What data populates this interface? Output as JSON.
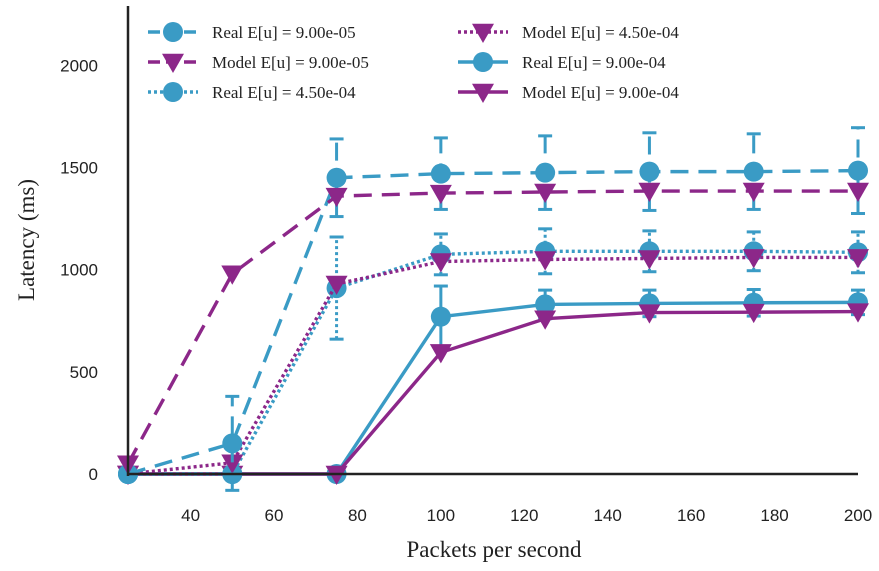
{
  "chart_data": {
    "type": "line",
    "xlabel": "Packets per second",
    "ylabel": "Latency (ms)",
    "xlim": [
      25,
      200
    ],
    "ylim": [
      0,
      2320
    ],
    "x_ticks": [
      "40",
      "60",
      "80",
      "100",
      "120",
      "140",
      "160",
      "180",
      "200"
    ],
    "y_ticks": [
      "0",
      "500",
      "1000",
      "1500",
      "2000"
    ],
    "grid": false,
    "legend_position": "top",
    "colors": {
      "real": "#3a9bc5",
      "model": "#8c2789"
    },
    "series": [
      {
        "name": "Real E[u] = 9.00e-05",
        "kind": "real",
        "style": "dashed",
        "marker": "circle",
        "x": [
          25,
          50,
          75,
          100,
          125,
          150,
          175,
          200
        ],
        "y": [
          0,
          150,
          1450,
          1470,
          1475,
          1480,
          1480,
          1485
        ],
        "err": [
          0,
          230,
          190,
          175,
          180,
          190,
          185,
          210
        ]
      },
      {
        "name": "Model E[u] = 9.00e-05",
        "kind": "model",
        "style": "dashed",
        "marker": "triangle-down",
        "x": [
          25,
          50,
          75,
          100,
          125,
          150,
          175,
          200
        ],
        "y": [
          50,
          980,
          1360,
          1375,
          1380,
          1385,
          1385,
          1385
        ],
        "err": []
      },
      {
        "name": "Real E[u] = 4.50e-04",
        "kind": "real",
        "style": "dotted",
        "marker": "circle",
        "x": [
          25,
          50,
          75,
          100,
          125,
          150,
          175,
          200
        ],
        "y": [
          0,
          0,
          910,
          1075,
          1090,
          1090,
          1090,
          1085
        ],
        "err": [
          0,
          0,
          250,
          100,
          110,
          100,
          95,
          100
        ]
      },
      {
        "name": "Model E[u] = 4.50e-04",
        "kind": "model",
        "style": "dotted",
        "marker": "triangle-down",
        "x": [
          25,
          50,
          75,
          100,
          125,
          150,
          175,
          200
        ],
        "y": [
          0,
          55,
          930,
          1040,
          1050,
          1055,
          1060,
          1060
        ],
        "err": []
      },
      {
        "name": "Real E[u] = 9.00e-04",
        "kind": "real",
        "style": "solid",
        "marker": "circle",
        "x": [
          25,
          50,
          75,
          100,
          125,
          150,
          175,
          200
        ],
        "y": [
          0,
          0,
          0,
          770,
          830,
          835,
          838,
          840
        ],
        "err": [
          0,
          0,
          0,
          150,
          70,
          65,
          65,
          60
        ]
      },
      {
        "name": "Model E[u] = 9.00e-04",
        "kind": "model",
        "style": "solid",
        "marker": "triangle-down",
        "x": [
          25,
          50,
          75,
          100,
          125,
          150,
          175,
          200
        ],
        "y": [
          0,
          0,
          0,
          595,
          760,
          790,
          792,
          795
        ],
        "err": []
      }
    ]
  }
}
